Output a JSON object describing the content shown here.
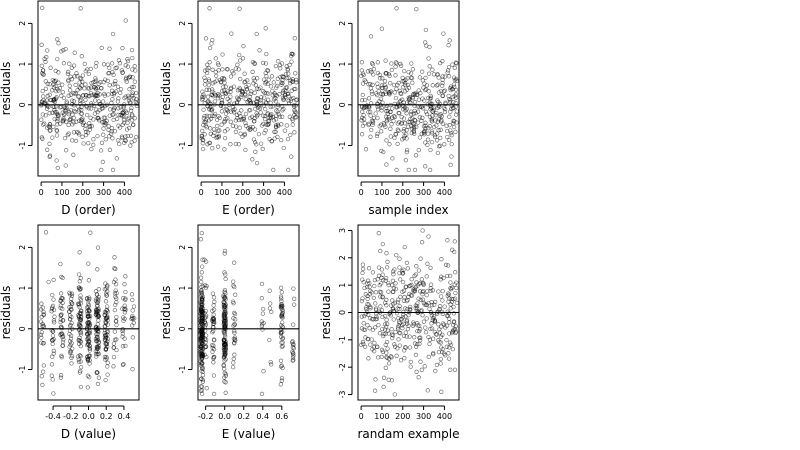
{
  "chart_data": [
    {
      "type": "scatter",
      "xlabel": "D (order)",
      "ylabel": "residuals",
      "xlim": [
        -15,
        470
      ],
      "ylim": [
        -1.75,
        2.55
      ],
      "xticks": [
        0,
        100,
        200,
        300,
        400
      ],
      "xtick_labels": [
        "0",
        "100",
        "200",
        "300",
        "400"
      ],
      "yticks": [
        -1,
        0,
        1,
        2
      ],
      "ytick_labels": [
        "-1",
        "0",
        "1",
        "2"
      ],
      "hline": 0,
      "n_points": 460,
      "x_kind": "order",
      "x_domain": [
        0,
        460
      ],
      "y_mean": 0.0,
      "y_sd": 0.6,
      "y_range": [
        -1.6,
        2.4
      ],
      "seed": 11,
      "notable_points": [
        {
          "x": 5,
          "y": 2.38
        },
        {
          "x": 190,
          "y": 2.37
        },
        {
          "x": 25,
          "y": 1.17
        },
        {
          "x": 80,
          "y": -1.55
        }
      ]
    },
    {
      "type": "scatter",
      "xlabel": "E (order)",
      "ylabel": "residuals",
      "xlim": [
        -15,
        470
      ],
      "ylim": [
        -1.75,
        2.55
      ],
      "xticks": [
        0,
        100,
        200,
        300,
        400
      ],
      "xtick_labels": [
        "0",
        "100",
        "200",
        "300",
        "400"
      ],
      "yticks": [
        -1,
        0,
        1,
        2
      ],
      "ytick_labels": [
        "-1",
        "0",
        "1",
        "2"
      ],
      "hline": 0,
      "n_points": 460,
      "x_kind": "order",
      "x_domain": [
        0,
        460
      ],
      "y_mean": 0.0,
      "y_sd": 0.6,
      "y_range": [
        -1.6,
        2.4
      ],
      "seed": 23,
      "notable_points": [
        {
          "x": 40,
          "y": 2.37
        },
        {
          "x": 185,
          "y": 2.36
        },
        {
          "x": 145,
          "y": 1.75
        },
        {
          "x": 310,
          "y": 1.88
        }
      ]
    },
    {
      "type": "scatter",
      "xlabel": "sample index",
      "ylabel": "residuals",
      "xlim": [
        -15,
        470
      ],
      "ylim": [
        -1.75,
        2.55
      ],
      "xticks": [
        0,
        100,
        200,
        300,
        400
      ],
      "xtick_labels": [
        "0",
        "100",
        "200",
        "300",
        "400"
      ],
      "yticks": [
        -1,
        0,
        1,
        2
      ],
      "ytick_labels": [
        "-1",
        "0",
        "1",
        "2"
      ],
      "hline": 0,
      "n_points": 460,
      "x_kind": "order",
      "x_domain": [
        0,
        460
      ],
      "y_mean": 0.0,
      "y_sd": 0.6,
      "y_range": [
        -1.6,
        2.4
      ],
      "seed": 37,
      "notable_points": [
        {
          "x": 170,
          "y": 2.37
        },
        {
          "x": 265,
          "y": 2.35
        },
        {
          "x": 100,
          "y": 1.87
        },
        {
          "x": 395,
          "y": 1.75
        }
      ]
    },
    {
      "type": "scatter",
      "xlabel": "D (value)",
      "ylabel": "residuals",
      "xlim": [
        -0.57,
        0.57
      ],
      "ylim": [
        -1.75,
        2.55
      ],
      "xticks": [
        -0.4,
        -0.2,
        0.0,
        0.2,
        0.4
      ],
      "xtick_labels": [
        "-0.4",
        "-0.2",
        "0.0",
        "0.2",
        "0.4"
      ],
      "yticks": [
        -1,
        0,
        1,
        2
      ],
      "ytick_labels": [
        "-1",
        "0",
        "1",
        "2"
      ],
      "hline": 0,
      "n_points": 460,
      "x_kind": "clustered",
      "x_clusters": [
        [
          -0.52,
          0.5
        ],
        [
          -0.4,
          0.6
        ],
        [
          -0.3,
          0.9
        ],
        [
          -0.2,
          1.0
        ],
        [
          -0.1,
          1.2
        ],
        [
          0.0,
          1.6
        ],
        [
          0.1,
          1.8
        ],
        [
          0.2,
          1.3
        ],
        [
          0.3,
          0.8
        ],
        [
          0.4,
          0.6
        ],
        [
          0.5,
          0.4
        ]
      ],
      "x_jitter": 0.018,
      "y_mean": 0.0,
      "y_sd": 0.6,
      "y_range": [
        -1.6,
        2.4
      ],
      "seed": 51,
      "notable_points": [
        {
          "x": -0.48,
          "y": 2.37
        },
        {
          "x": 0.02,
          "y": 2.36
        },
        {
          "x": -0.1,
          "y": 1.88
        },
        {
          "x": -0.45,
          "y": 1.15
        }
      ]
    },
    {
      "type": "scatter",
      "xlabel": "E (value)",
      "ylabel": "residuals",
      "xlim": [
        -0.28,
        0.78
      ],
      "ylim": [
        -1.75,
        2.55
      ],
      "xticks": [
        -0.2,
        0.0,
        0.2,
        0.4,
        0.6
      ],
      "xtick_labels": [
        "-0.2",
        "0.0",
        "0.2",
        "0.4",
        "0.6"
      ],
      "yticks": [
        -1,
        0,
        1,
        2
      ],
      "ytick_labels": [
        "-1",
        "0",
        "1",
        "2"
      ],
      "hline": 0,
      "n_points": 460,
      "x_kind": "clustered",
      "x_clusters": [
        [
          -0.24,
          6.0
        ],
        [
          -0.2,
          1.0
        ],
        [
          -0.12,
          0.8
        ],
        [
          0.0,
          3.0
        ],
        [
          0.1,
          0.6
        ],
        [
          0.4,
          0.3
        ],
        [
          0.48,
          0.3
        ],
        [
          0.6,
          1.2
        ],
        [
          0.72,
          0.4
        ]
      ],
      "x_jitter": 0.012,
      "y_mean": 0.0,
      "y_sd": 0.6,
      "y_range": [
        -1.6,
        2.4
      ],
      "seed": 67,
      "notable_points": [
        {
          "x": -0.24,
          "y": 2.35
        },
        {
          "x": -0.25,
          "y": 2.2
        },
        {
          "x": 0.0,
          "y": 1.85
        },
        {
          "x": 0.6,
          "y": 0.9
        }
      ]
    },
    {
      "type": "scatter",
      "xlabel": "randam example",
      "ylabel": "residuals",
      "xlim": [
        -15,
        470
      ],
      "ylim": [
        -3.2,
        3.2
      ],
      "xticks": [
        0,
        100,
        200,
        300,
        400
      ],
      "xtick_labels": [
        "0",
        "100",
        "200",
        "300",
        "400"
      ],
      "yticks": [
        -3,
        -2,
        -1,
        0,
        1,
        2,
        3
      ],
      "ytick_labels": [
        "-3",
        "-2",
        "-1",
        "0",
        "1",
        "2",
        "3"
      ],
      "hline": 0,
      "n_points": 460,
      "x_kind": "order",
      "x_domain": [
        0,
        460
      ],
      "y_mean": 0.0,
      "y_sd": 1.1,
      "y_range": [
        -3.0,
        3.0
      ],
      "seed": 83,
      "notable_points": [
        {
          "x": 85,
          "y": 2.9
        },
        {
          "x": 320,
          "y": -2.85
        },
        {
          "x": 385,
          "y": -2.9
        },
        {
          "x": 450,
          "y": 2.6
        }
      ]
    }
  ]
}
